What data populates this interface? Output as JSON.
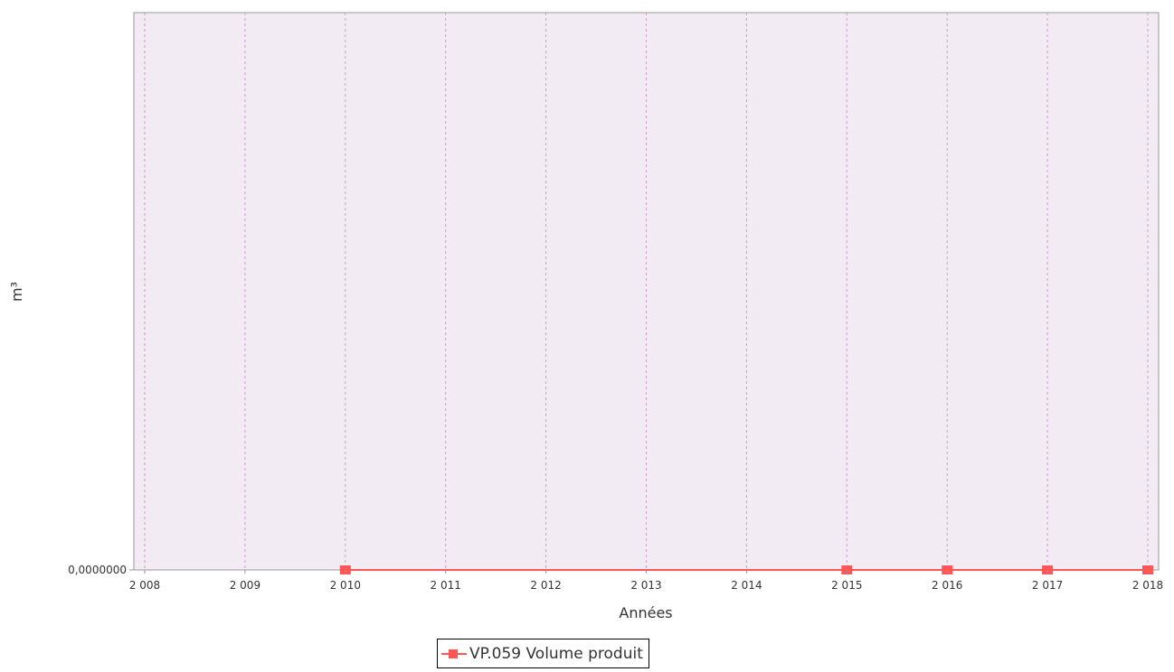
{
  "chart_data": {
    "type": "line",
    "title": "",
    "xlabel": "Années",
    "ylabel": "m³",
    "x_ticks": [
      "2 008",
      "2 009",
      "2 010",
      "2 011",
      "2 012",
      "2 013",
      "2 014",
      "2 015",
      "2 016",
      "2 017",
      "2 018"
    ],
    "y_ticks": [
      "0,0000000"
    ],
    "xlim": [
      2008,
      2018
    ],
    "grid": "vertical-dashed",
    "legend_position": "bottom",
    "series": [
      {
        "name": "VP.059 Volume produit",
        "color": "#ff5555",
        "points": [
          {
            "x": 2010,
            "y": 0
          },
          {
            "x": 2015,
            "y": 0
          },
          {
            "x": 2016,
            "y": 0
          },
          {
            "x": 2017,
            "y": 0
          },
          {
            "x": 2018,
            "y": 0
          }
        ]
      }
    ],
    "plot_background": "#f2ebf4",
    "grid_color": "#c8a0c8"
  }
}
